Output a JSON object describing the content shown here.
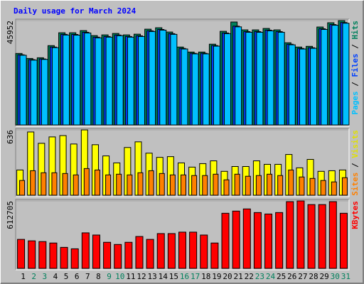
{
  "chart_data": [
    {
      "type": "bar",
      "title": "Daily usage for March 2024",
      "ylim": [
        0,
        45952
      ],
      "yticks": [
        45952
      ],
      "series": [
        {
          "name": "Hits",
          "color": "#00805c",
          "values": [
            31474,
            29271,
            29586,
            34936,
            40601,
            40601,
            41545,
            39342,
            39657,
            40287,
            39657,
            39972,
            42175,
            42804,
            40916,
            34307,
            32104,
            32104,
            35566,
            41231,
            45322,
            41860,
            41860,
            42490,
            41860,
            36195,
            34307,
            34621,
            43119,
            45008,
            45952
          ]
        },
        {
          "name": "Files",
          "color": "#0040ff",
          "values": [
            30900,
            28750,
            29050,
            34300,
            39900,
            39850,
            40800,
            38650,
            38950,
            39600,
            38950,
            39250,
            41450,
            42050,
            40200,
            33700,
            31550,
            31550,
            34950,
            40500,
            43500,
            41100,
            41100,
            41750,
            41100,
            35550,
            33700,
            34000,
            42350,
            44200,
            45100
          ]
        },
        {
          "name": "Pages",
          "color": "#00c0ff",
          "values": [
            30700,
            28550,
            28850,
            34050,
            39600,
            39550,
            40500,
            38350,
            38650,
            39300,
            38650,
            38950,
            41150,
            41750,
            39900,
            33450,
            31300,
            31300,
            34700,
            40200,
            43200,
            40800,
            40800,
            41450,
            40800,
            35300,
            33450,
            33750,
            42050,
            43900,
            44800
          ]
        }
      ]
    },
    {
      "type": "bar",
      "ylim": [
        0,
        636
      ],
      "yticks": [
        636
      ],
      "series": [
        {
          "name": "Visits",
          "color": "#ffff00",
          "values": [
            246,
            616,
            506,
            568,
            581,
            499,
            636,
            492,
            383,
            315,
            465,
            520,
            410,
            369,
            376,
            315,
            274,
            308,
            335,
            233,
            280,
            280,
            335,
            301,
            301,
            397,
            267,
            349,
            233,
            239,
            246
          ]
        },
        {
          "name": "Sites",
          "color": "#ff8000",
          "values": [
            144,
            239,
            219,
            219,
            212,
            198,
            260,
            246,
            198,
            205,
            198,
            219,
            239,
            212,
            198,
            198,
            192,
            192,
            205,
            150,
            205,
            185,
            192,
            205,
            192,
            246,
            178,
            164,
            144,
            130,
            171
          ]
        }
      ]
    },
    {
      "type": "bar",
      "ylim": [
        0,
        612705
      ],
      "yticks": [
        612705
      ],
      "categories": [
        "1",
        "2",
        "3",
        "4",
        "5",
        "6",
        "7",
        "8",
        "9",
        "10",
        "11",
        "12",
        "13",
        "14",
        "15",
        "16",
        "17",
        "18",
        "19",
        "20",
        "21",
        "22",
        "23",
        "24",
        "25",
        "26",
        "27",
        "28",
        "29",
        "30",
        "31"
      ],
      "category_colors": [
        "#000000",
        "#00805c",
        "#00805c",
        "#000000",
        "#000000",
        "#000000",
        "#000000",
        "#000000",
        "#00805c",
        "#00805c",
        "#000000",
        "#000000",
        "#000000",
        "#000000",
        "#000000",
        "#00805c",
        "#00805c",
        "#000000",
        "#000000",
        "#000000",
        "#000000",
        "#000000",
        "#00805c",
        "#00805c",
        "#000000",
        "#000000",
        "#000000",
        "#000000",
        "#000000",
        "#00805c",
        "#00805c"
      ],
      "series": [
        {
          "name": "KBytes",
          "color": "#ff0000",
          "values": [
            263520,
            250344,
            243756,
            230580,
            191052,
            177876,
            322812,
            303048,
            237168,
            217404,
            237168,
            289872,
            263520,
            316224,
            316224,
            329400,
            329400,
            303048,
            230580,
            500688,
            520452,
            540216,
            507276,
            494100,
            507276,
            606096,
            612705,
            579744,
            579744,
            606096,
            500688
          ]
        }
      ]
    }
  ]
}
